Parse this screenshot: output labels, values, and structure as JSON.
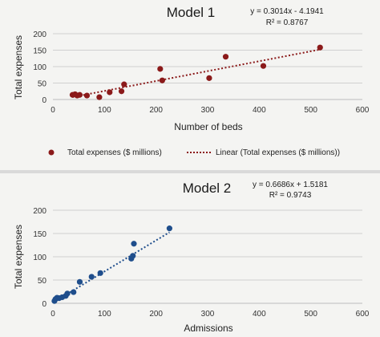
{
  "colors": {
    "model1_marker": "#8b1a1a",
    "model1_trendline": "#8b1a1a",
    "model2_marker": "#1f4e8c",
    "model2_trendline": "#1f4e8c",
    "gridline": "#d0d0d0"
  },
  "chart_data": [
    {
      "type": "scatter",
      "title": "Model 1",
      "equation": "y = 0.3014x - 4.1941",
      "r_squared": "R² = 0.8767",
      "xlabel": "Number of beds",
      "ylabel": "Total expenses",
      "xlim": [
        0,
        600
      ],
      "ylim": [
        0,
        200
      ],
      "x_ticks": [
        "0",
        "100",
        "200",
        "300",
        "400",
        "500",
        "600"
      ],
      "y_ticks": [
        "0",
        "50",
        "100",
        "150",
        "200"
      ],
      "grid": true,
      "legend_position": "bottom",
      "legend": {
        "series_label": "Total expenses ($ millions)",
        "trend_label": "Linear (Total expenses ($ millions))"
      },
      "trendline": {
        "slope": 0.3014,
        "intercept": -4.1941
      },
      "points": [
        {
          "x": 38,
          "y": 14
        },
        {
          "x": 43,
          "y": 16
        },
        {
          "x": 47,
          "y": 12
        },
        {
          "x": 52,
          "y": 14
        },
        {
          "x": 66,
          "y": 12
        },
        {
          "x": 90,
          "y": 7
        },
        {
          "x": 110,
          "y": 22
        },
        {
          "x": 133,
          "y": 25
        },
        {
          "x": 138,
          "y": 46
        },
        {
          "x": 208,
          "y": 93
        },
        {
          "x": 212,
          "y": 58
        },
        {
          "x": 303,
          "y": 65
        },
        {
          "x": 335,
          "y": 130
        },
        {
          "x": 408,
          "y": 102
        },
        {
          "x": 518,
          "y": 158
        }
      ]
    },
    {
      "type": "scatter",
      "title": "Model 2",
      "equation": "y = 0.6686x + 1.5181",
      "r_squared": "R² = 0.9743",
      "xlabel": "Admissions",
      "ylabel": "Total expenses",
      "xlim": [
        0,
        600
      ],
      "ylim": [
        0,
        200
      ],
      "x_ticks": [
        "0",
        "100",
        "200",
        "300",
        "400",
        "500",
        "600"
      ],
      "y_ticks": [
        "0",
        "50",
        "100",
        "150",
        "200"
      ],
      "grid": true,
      "trendline": {
        "slope": 0.6686,
        "intercept": 1.5181
      },
      "points": [
        {
          "x": 3,
          "y": 5
        },
        {
          "x": 5,
          "y": 9
        },
        {
          "x": 8,
          "y": 12
        },
        {
          "x": 12,
          "y": 11
        },
        {
          "x": 18,
          "y": 13
        },
        {
          "x": 25,
          "y": 16
        },
        {
          "x": 28,
          "y": 21
        },
        {
          "x": 40,
          "y": 24
        },
        {
          "x": 52,
          "y": 46
        },
        {
          "x": 75,
          "y": 57
        },
        {
          "x": 92,
          "y": 65
        },
        {
          "x": 152,
          "y": 96
        },
        {
          "x": 155,
          "y": 102
        },
        {
          "x": 157,
          "y": 128
        },
        {
          "x": 226,
          "y": 161
        }
      ]
    }
  ]
}
